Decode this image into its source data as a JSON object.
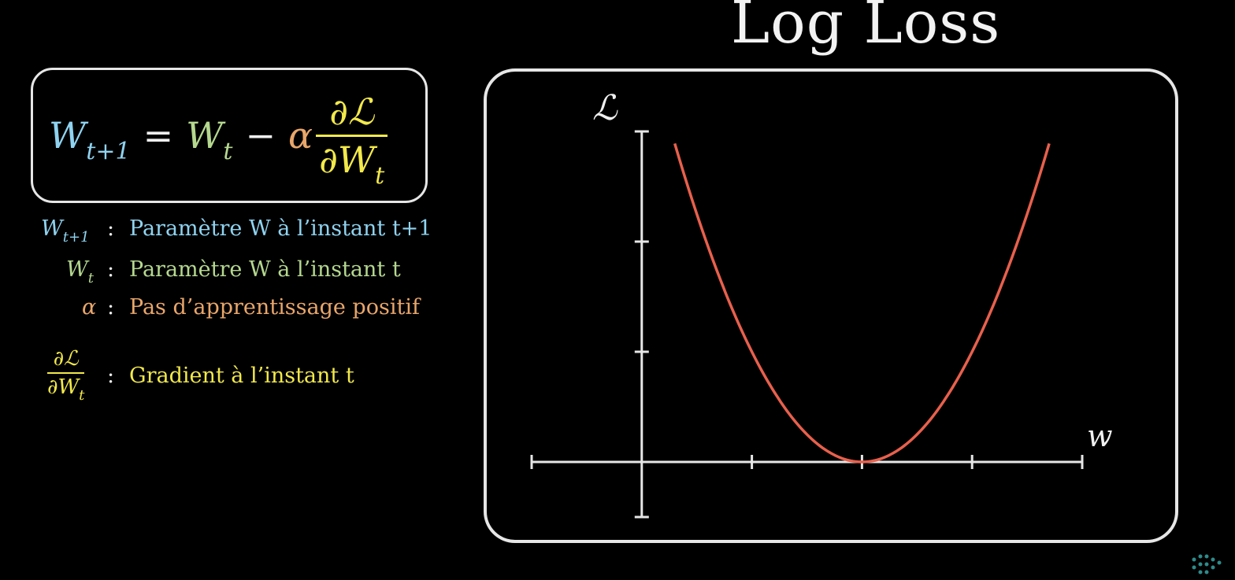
{
  "title": "Log Loss",
  "formula": {
    "lhs": "W",
    "lhs_sub": "t+1",
    "equals": "=",
    "w_t": "W",
    "w_t_sub": "t",
    "minus": "−",
    "alpha": "α",
    "num": "∂ℒ",
    "den": "∂W",
    "den_sub": "t"
  },
  "legend": [
    {
      "sym": "W",
      "sub": "t+1",
      "text": "Paramètre W à l’instant t+1",
      "color": "#8fd3f0"
    },
    {
      "sym": "W",
      "sub": "t",
      "text": "Paramètre W à l’instant t",
      "color": "#b5d88f"
    },
    {
      "sym": "α",
      "sub": "",
      "text": "Pas d’apprentissage positif",
      "color": "#e9a66a"
    },
    {
      "sym_num": "∂ℒ",
      "sym_den": "∂W",
      "sub": "t",
      "text": "Gradient à l’instant t",
      "color": "#f2e94a"
    }
  ],
  "colon": ":",
  "plot": {
    "y_label": "ℒ",
    "x_label": "w",
    "curve_color": "#e8604c",
    "axis_color": "#e6e6e6"
  },
  "chart_data": {
    "type": "line",
    "title": "Log Loss",
    "xlabel": "w",
    "ylabel": "ℒ",
    "xlim": [
      -1,
      4
    ],
    "ylim": [
      -0.5,
      3
    ],
    "x_ticks": [
      -1,
      1,
      2,
      3,
      4
    ],
    "y_ticks": [
      1,
      2,
      3
    ],
    "grid": false,
    "series": [
      {
        "x": [
          0.3,
          0.6,
          0.9,
          1.2,
          1.5,
          1.8,
          2.0,
          2.2,
          2.5,
          2.8,
          3.1,
          3.4,
          3.7
        ],
        "y": [
          2.89,
          1.96,
          1.21,
          0.64,
          0.25,
          0.04,
          0.0,
          0.04,
          0.25,
          0.64,
          1.21,
          1.96,
          2.89
        ]
      }
    ]
  }
}
